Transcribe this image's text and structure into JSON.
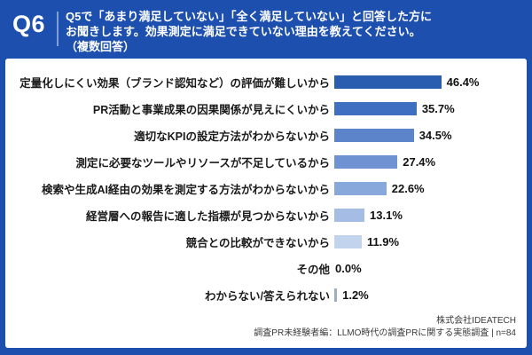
{
  "header": {
    "question_number": "Q6",
    "question_lines": [
      "Q5で「あまり満足していない」「全く満足していない」と回答した方に",
      "お聞きします。効果測定に満足できていない理由を教えてください。",
      "（複数回答）"
    ]
  },
  "chart_data": {
    "type": "bar",
    "orientation": "horizontal",
    "title": "効果測定に満足できていない理由（複数回答）",
    "unit": "%",
    "xlim": [
      0,
      50
    ],
    "categories": [
      "定量化しにくい効果（ブランド認知など）の評価が難しいから",
      "PR活動と事業成果の因果関係が見えにくいから",
      "適切なKPIの設定方法がわからないから",
      "測定に必要なツールやリソースが不足しているから",
      "検索や生成AI経由の効果を測定する方法がわからないから",
      "経営層への報告に適した指標が見つからないから",
      "競合との比較ができないから",
      "その他",
      "わからない/答えられない"
    ],
    "values": [
      46.4,
      35.7,
      34.5,
      27.4,
      22.6,
      13.1,
      11.9,
      0.0,
      1.2
    ],
    "value_labels": [
      "46.4%",
      "35.7%",
      "34.5%",
      "27.4%",
      "22.6%",
      "13.1%",
      "11.9%",
      "0.0%",
      "1.2%"
    ],
    "bar_colors": [
      "#2a5caf",
      "#3f6fc1",
      "#5b84cb",
      "#6f93d2",
      "#88a7db",
      "#a5bce4",
      "#c2d3ee",
      "transparent",
      "#9eaec2"
    ]
  },
  "footer": {
    "company": "株式会社IDEATECH",
    "survey": "調査PR未経験者編：LLMO時代の調査PRに関する実態調査 | n=84"
  },
  "colors": {
    "background": "#1d4fae",
    "panel": "#ffffff",
    "divider_line": "#7f9fd5",
    "header_text": "#ffffff",
    "label_text": "#1a1a1a"
  }
}
